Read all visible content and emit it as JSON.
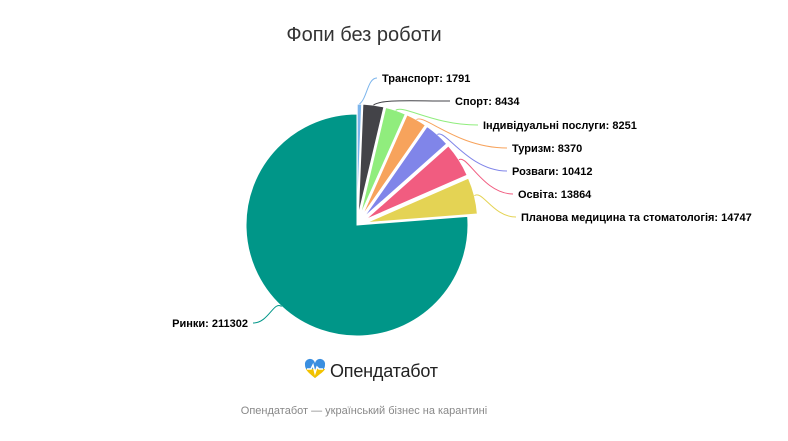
{
  "chart_data": {
    "type": "pie",
    "title": "Фопи без роботи",
    "slices": [
      {
        "label": "Ринки",
        "value": 211302,
        "color": "#009688"
      },
      {
        "label": "Транспорт",
        "value": 1791,
        "color": "#7cb5ec"
      },
      {
        "label": "Спорт",
        "value": 8434,
        "color": "#434348"
      },
      {
        "label": "Індивідуальні послуги",
        "value": 8251,
        "color": "#90ed7d"
      },
      {
        "label": "Туризм",
        "value": 8370,
        "color": "#f7a35c"
      },
      {
        "label": "Розваги",
        "value": 10412,
        "color": "#8085e9"
      },
      {
        "label": "Освіта",
        "value": 13864,
        "color": "#f15c80"
      },
      {
        "label": "Планова медицина та стоматологія",
        "value": 14747,
        "color": "#e4d354"
      }
    ]
  },
  "logo": {
    "text": "Опендатабот",
    "icon": "heart-pulse-icon",
    "colors": [
      "#3a8fe0",
      "#f2c200"
    ]
  },
  "footer": {
    "text": "Опендатабот — український бізнес на карантині"
  }
}
